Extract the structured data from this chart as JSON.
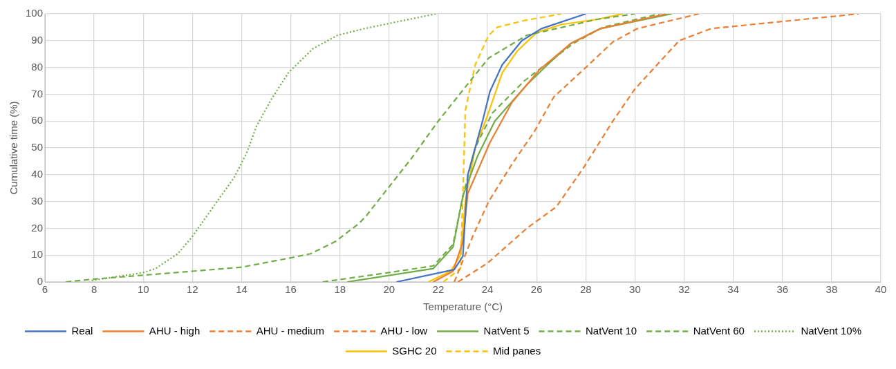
{
  "chart_data": {
    "type": "line",
    "xlabel": "Temperature (°C)",
    "ylabel": "Cumulative time (%)",
    "xlim": [
      6,
      40
    ],
    "xticks": [
      6,
      8,
      10,
      12,
      14,
      16,
      18,
      20,
      22,
      24,
      26,
      28,
      30,
      32,
      34,
      36,
      38,
      40
    ],
    "ylim": [
      0,
      100
    ],
    "yticks": [
      0,
      10,
      20,
      30,
      40,
      50,
      60,
      70,
      80,
      90,
      100
    ],
    "grid": true,
    "legend": "bottom",
    "marker": "none",
    "series": [
      {
        "name": "Real",
        "color": "#4472c4",
        "line_style": "solid",
        "x": [
          20.3,
          22.65,
          23.0,
          23.2,
          23.8,
          24.1,
          24.6,
          25.4,
          26.2,
          28
        ],
        "values": [
          0,
          4.6,
          9.6,
          40,
          60,
          71,
          81,
          90,
          94.5,
          100
        ]
      },
      {
        "name": "AHU - high",
        "color": "#ed7d31",
        "line_style": "solid",
        "x": [
          21.8,
          22.6,
          23.0,
          23.2,
          24.1,
          25.0,
          26.1,
          27.4,
          28.6,
          31.3
        ],
        "values": [
          0,
          4,
          15,
          33,
          52,
          67,
          79,
          89,
          94.5,
          100
        ]
      },
      {
        "name": "AHU - medium",
        "color": "#ed7d31",
        "line_style": "dashed",
        "x": [
          22.65,
          23.4,
          24.05,
          25.0,
          25.9,
          26.7,
          28.0,
          29.1,
          30.1,
          32.6
        ],
        "values": [
          0,
          17,
          30,
          44,
          56,
          69,
          80,
          89.5,
          94.5,
          100
        ]
      },
      {
        "name": "AHU - low",
        "color": "#ed7d31",
        "line_style": "dashed",
        "x": [
          22.8,
          24.0,
          25.6,
          26.8,
          27.9,
          29.1,
          30.0,
          31.8,
          33.1,
          39.1
        ],
        "values": [
          0,
          7,
          20,
          28,
          42.5,
          60,
          72,
          90,
          94.5,
          100
        ]
      },
      {
        "name": "NatVent 5",
        "color": "#70ad47",
        "line_style": "solid",
        "x": [
          18.3,
          21.8,
          22.6,
          23.0,
          23.6,
          24.3,
          25.6,
          26.5,
          27.4,
          28.6,
          31.5
        ],
        "values": [
          0,
          5,
          13,
          32,
          47,
          60,
          73.5,
          81.5,
          89,
          94.5,
          100
        ]
      },
      {
        "name": "NatVent 10",
        "color": "#70ad47",
        "line_style": "dashed",
        "x": [
          17.3,
          20,
          21.8,
          22.6,
          23.0,
          23.5,
          24.2,
          25.5,
          26.5,
          27.5,
          28.7,
          31
        ],
        "values": [
          0,
          3.5,
          6,
          14,
          32,
          50,
          63,
          75,
          82,
          89,
          95,
          100
        ]
      },
      {
        "name": "NatVent 60",
        "color": "#70ad47",
        "line_style": "dashed",
        "x": [
          6.85,
          7.9,
          10,
          12,
          14,
          16,
          16.8,
          17.8,
          18.8,
          19.1,
          20.9,
          22.0,
          23.3,
          24.05,
          25.6,
          28.5,
          30
        ],
        "values": [
          0,
          1,
          2.5,
          4,
          5.5,
          9,
          10.5,
          15,
          22,
          25,
          46,
          60,
          75,
          83.5,
          92,
          98,
          100
        ]
      },
      {
        "name": "NatVent 10%",
        "color": "#70ad47",
        "line_style": "dotted",
        "x": [
          7.9,
          10,
          10.5,
          11.4,
          12,
          13,
          13.7,
          14.2,
          14.6,
          15.2,
          15.9,
          16.9,
          17.9,
          19,
          21.9
        ],
        "values": [
          0.5,
          3.5,
          5,
          10.5,
          17,
          30,
          39,
          48,
          58,
          68,
          78,
          87,
          92,
          94.5,
          100
        ]
      },
      {
        "name": "SGHC 20",
        "color": "#ffc000",
        "line_style": "solid",
        "x": [
          21.6,
          22.5,
          22.9,
          23.1,
          23.5,
          24,
          24.6,
          25.2,
          26,
          27,
          28.5,
          29.5
        ],
        "values": [
          0,
          4,
          10,
          30,
          50,
          62,
          78,
          86,
          93,
          96,
          98,
          100
        ]
      },
      {
        "name": "Mid panes",
        "color": "#ffc000",
        "line_style": "dashed",
        "x": [
          22.2,
          22.9,
          23.0,
          23.1,
          23.5,
          24.05,
          24.4,
          25.5,
          27
        ],
        "values": [
          0,
          5,
          33,
          64,
          81,
          92,
          95,
          97.5,
          100
        ]
      }
    ]
  }
}
